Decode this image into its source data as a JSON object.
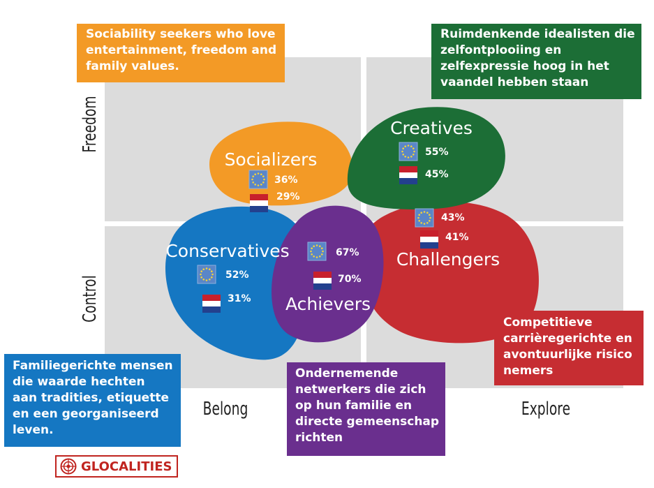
{
  "axes": {
    "freedom": "Freedom",
    "control": "Control",
    "belong": "Belong",
    "explore": "Explore"
  },
  "segments": [
    {
      "key": "socializers",
      "name": "Socializers",
      "color": "#f39a26",
      "eu": "36%",
      "nl": "29%"
    },
    {
      "key": "creatives",
      "name": "Creatives",
      "color": "#1c6e36",
      "eu": "55%",
      "nl": "45%"
    },
    {
      "key": "challengers",
      "name": "Challengers",
      "color": "#c62d32",
      "eu": "43%",
      "nl": "41%"
    },
    {
      "key": "conservatives",
      "name": "Conservatives",
      "color": "#1577c2",
      "eu": "52%",
      "nl": "31%"
    },
    {
      "key": "achievers",
      "name": "Achievers",
      "color": "#6a2f8e",
      "eu": "67%",
      "nl": "70%"
    }
  ],
  "descriptions": {
    "socializers": [
      "Sociability seekers who love",
      "entertainment, freedom and",
      "family values."
    ],
    "creatives": [
      "Ruimdenkende idealisten die",
      "zelfontplooiing en",
      "zelfexpressie hoog in het",
      "vaandel hebben staan"
    ],
    "challengers": [
      "Competitieve",
      "carrièregerichte en",
      "avontuurlijke risico",
      "nemers"
    ],
    "conservatives": [
      "Familiegerichte mensen",
      "die waarde hechten",
      "aan tradities, etiquette",
      "en een georganiseerd",
      "leven."
    ],
    "achievers": [
      "Ondernemende",
      "netwerkers die zich",
      "op hun familie en",
      "directe gemeenschap",
      "richten"
    ]
  },
  "logo": {
    "text": "GLOCALITIES",
    "icon": "glocalities-emblem-icon",
    "color": "#c0241f"
  },
  "icons": {
    "eu": "eu-flag-icon",
    "nl": "netherlands-flag-icon"
  }
}
